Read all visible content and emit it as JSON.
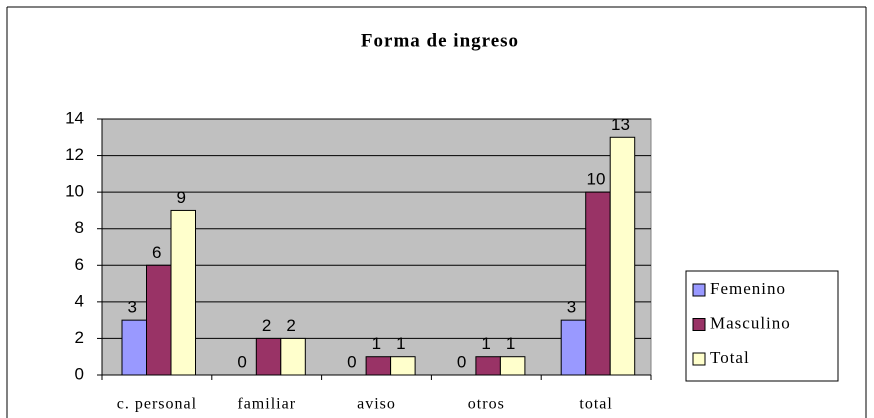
{
  "chart_data": {
    "type": "bar",
    "title": "Forma de ingreso",
    "categories": [
      "c. personal",
      "familiar",
      "aviso",
      "otros",
      "total"
    ],
    "series": [
      {
        "name": "Femenino",
        "color": "#9999ff",
        "values": [
          3,
          0,
          0,
          0,
          3
        ]
      },
      {
        "name": "Masculino",
        "color": "#993366",
        "values": [
          6,
          2,
          1,
          1,
          10
        ]
      },
      {
        "name": "Total",
        "color": "#ffffcc",
        "values": [
          9,
          2,
          1,
          1,
          13
        ]
      }
    ],
    "ylim": [
      0,
      14
    ],
    "yticks": [
      0,
      2,
      4,
      6,
      8,
      10,
      12,
      14
    ],
    "grid": true,
    "legend": "right",
    "plot_background": "#c0c0c0"
  }
}
